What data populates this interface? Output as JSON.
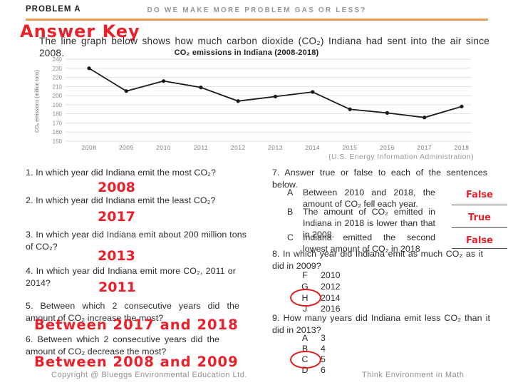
{
  "header": {
    "problem_label": "PROBLEM A",
    "banner_title": "DO WE MAKE MORE PROBLEM GAS OR LESS?",
    "answer_key": "Answer Key",
    "intro": "The line graph below shows how much carbon dioxide (CO₂) Indiana had sent into the air since 2008."
  },
  "chart_data": {
    "type": "line",
    "title": "CO₂ emissions in Indiana (2008-2018)",
    "ylabel": "CO₂ emissions (million tons)",
    "source": "(U.S. Energy Information Administration)",
    "categories": [
      "2008",
      "2009",
      "2010",
      "2011",
      "2012",
      "2013",
      "2014",
      "2015",
      "2016",
      "2017",
      "2018"
    ],
    "values": [
      230,
      205,
      216,
      209,
      194,
      199,
      204,
      185,
      181,
      176,
      188
    ],
    "ylim": [
      150,
      240
    ],
    "ytick_step": 10,
    "grid": true,
    "legend": "none",
    "line_color": "#1a1a1a"
  },
  "left_questions": [
    {
      "text": "1. In which year did Indiana emit the most CO₂?",
      "answer": "2008"
    },
    {
      "text": "2. In which year did Indiana emit the least CO₂?",
      "answer": "2017"
    },
    {
      "text": "3. In which year did Indiana emit about 200 million tons of CO₂?",
      "answer": "2013"
    },
    {
      "text": "4. In which year did Indiana emit more CO₂, 2011 or 2014?",
      "answer": "2011"
    },
    {
      "text": "5. Between which 2 consecutive years did the amount of CO₂ increase the most?",
      "answer": "Between 2017 and 2018"
    },
    {
      "text": "6. Between which 2 consecutive years did the amount of CO₂ decrease the most?",
      "answer": "Between 2008 and 2009"
    }
  ],
  "q7": {
    "text": "7. Answer true or false to each of the sentences below.",
    "items": [
      {
        "letter": "A",
        "statement": "Between 2010 and 2018, the amount of CO₂ fell each year.",
        "answer": "False"
      },
      {
        "letter": "B",
        "statement": "The amount of CO₂ emitted in Indiana in 2018 is lower than that in 2008.",
        "answer": "True"
      },
      {
        "letter": "C",
        "statement": "Indiana emitted the second lowest amount of CO₂ in 2018",
        "answer": "False"
      }
    ]
  },
  "q8": {
    "text": "8. In which year did Indiana emit as much CO₂ as it did in 2009?",
    "options": [
      {
        "letter": "F",
        "value": "2010",
        "selected": false
      },
      {
        "letter": "G",
        "value": "2012",
        "selected": false
      },
      {
        "letter": "H",
        "value": "2014",
        "selected": true
      },
      {
        "letter": "J",
        "value": "2016",
        "selected": false
      }
    ]
  },
  "q9": {
    "text": "9. How many years did Indiana emit less CO₂ than it did in 2013?",
    "options": [
      {
        "letter": "A",
        "value": "3",
        "selected": false
      },
      {
        "letter": "B",
        "value": "4",
        "selected": false
      },
      {
        "letter": "C",
        "value": "5",
        "selected": true
      },
      {
        "letter": "D",
        "value": "6",
        "selected": false
      }
    ]
  },
  "footer": {
    "copyright": "Copyright @ Blueggs Environmental Education Ltd.",
    "tagline": "Think Environment in Math"
  },
  "colors": {
    "accent_orange": "#ED9B51",
    "answer_red": "#E8212A",
    "circle_red": "#E01B1B",
    "muted_gray": "#9a9a9a"
  }
}
